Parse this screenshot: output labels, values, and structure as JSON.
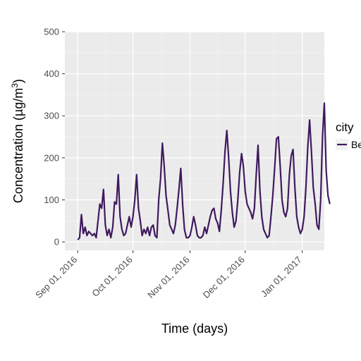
{
  "chart_data": {
    "type": "line",
    "xlabel": "Time (days)",
    "ylabel_main": "Concentration (µg/m",
    "ylabel_sup": "3",
    "ylabel_close": ")",
    "ylim": [
      -20,
      500
    ],
    "xlim": [
      "2016-08-25",
      "2017-01-13"
    ],
    "grid": true,
    "legend_position": "right",
    "legend_title": "city",
    "y_ticks": [
      0,
      100,
      200,
      300,
      400,
      500
    ],
    "x_ticks": [
      {
        "date": "2016-09-01",
        "label": "Sep 01, 2016"
      },
      {
        "date": "2016-10-01",
        "label": "Oct 01, 2016"
      },
      {
        "date": "2016-11-01",
        "label": "Nov 01, 2016"
      },
      {
        "date": "2016-12-01",
        "label": "Dec 01, 2016"
      },
      {
        "date": "2017-01-01",
        "label": "Jan 01, 2017"
      }
    ],
    "series": [
      {
        "name": "Be",
        "color": "#3f1a5e",
        "points": [
          [
            "2016-09-01",
            5
          ],
          [
            "2016-09-02",
            10
          ],
          [
            "2016-09-03",
            65
          ],
          [
            "2016-09-04",
            20
          ],
          [
            "2016-09-05",
            35
          ],
          [
            "2016-09-06",
            15
          ],
          [
            "2016-09-07",
            25
          ],
          [
            "2016-09-08",
            20
          ],
          [
            "2016-09-09",
            15
          ],
          [
            "2016-09-10",
            20
          ],
          [
            "2016-09-11",
            10
          ],
          [
            "2016-09-12",
            50
          ],
          [
            "2016-09-13",
            90
          ],
          [
            "2016-09-14",
            80
          ],
          [
            "2016-09-15",
            125
          ],
          [
            "2016-09-16",
            40
          ],
          [
            "2016-09-17",
            15
          ],
          [
            "2016-09-18",
            30
          ],
          [
            "2016-09-19",
            10
          ],
          [
            "2016-09-20",
            35
          ],
          [
            "2016-09-21",
            95
          ],
          [
            "2016-09-22",
            90
          ],
          [
            "2016-09-23",
            160
          ],
          [
            "2016-09-24",
            60
          ],
          [
            "2016-09-25",
            30
          ],
          [
            "2016-09-26",
            15
          ],
          [
            "2016-09-27",
            20
          ],
          [
            "2016-09-28",
            40
          ],
          [
            "2016-09-29",
            60
          ],
          [
            "2016-09-30",
            35
          ],
          [
            "2016-10-01",
            60
          ],
          [
            "2016-10-02",
            100
          ],
          [
            "2016-10-03",
            160
          ],
          [
            "2016-10-04",
            80
          ],
          [
            "2016-10-05",
            50
          ],
          [
            "2016-10-06",
            15
          ],
          [
            "2016-10-07",
            30
          ],
          [
            "2016-10-08",
            20
          ],
          [
            "2016-10-09",
            35
          ],
          [
            "2016-10-10",
            15
          ],
          [
            "2016-10-11",
            35
          ],
          [
            "2016-10-12",
            40
          ],
          [
            "2016-10-13",
            15
          ],
          [
            "2016-10-14",
            10
          ],
          [
            "2016-10-15",
            100
          ],
          [
            "2016-10-16",
            150
          ],
          [
            "2016-10-17",
            235
          ],
          [
            "2016-10-18",
            180
          ],
          [
            "2016-10-19",
            110
          ],
          [
            "2016-10-20",
            75
          ],
          [
            "2016-10-21",
            40
          ],
          [
            "2016-10-22",
            30
          ],
          [
            "2016-10-23",
            20
          ],
          [
            "2016-10-24",
            40
          ],
          [
            "2016-10-25",
            80
          ],
          [
            "2016-10-26",
            125
          ],
          [
            "2016-10-27",
            175
          ],
          [
            "2016-10-28",
            90
          ],
          [
            "2016-10-29",
            30
          ],
          [
            "2016-10-30",
            10
          ],
          [
            "2016-10-31",
            10
          ],
          [
            "2016-11-01",
            15
          ],
          [
            "2016-11-02",
            35
          ],
          [
            "2016-11-03",
            60
          ],
          [
            "2016-11-04",
            40
          ],
          [
            "2016-11-05",
            15
          ],
          [
            "2016-11-06",
            10
          ],
          [
            "2016-11-07",
            10
          ],
          [
            "2016-11-08",
            15
          ],
          [
            "2016-11-09",
            35
          ],
          [
            "2016-11-10",
            20
          ],
          [
            "2016-11-11",
            40
          ],
          [
            "2016-11-12",
            60
          ],
          [
            "2016-11-13",
            75
          ],
          [
            "2016-11-14",
            80
          ],
          [
            "2016-11-15",
            55
          ],
          [
            "2016-11-16",
            45
          ],
          [
            "2016-11-17",
            25
          ],
          [
            "2016-11-18",
            75
          ],
          [
            "2016-11-19",
            140
          ],
          [
            "2016-11-20",
            215
          ],
          [
            "2016-11-21",
            265
          ],
          [
            "2016-11-22",
            200
          ],
          [
            "2016-11-23",
            120
          ],
          [
            "2016-11-24",
            70
          ],
          [
            "2016-11-25",
            35
          ],
          [
            "2016-11-26",
            50
          ],
          [
            "2016-11-27",
            100
          ],
          [
            "2016-11-28",
            165
          ],
          [
            "2016-11-29",
            210
          ],
          [
            "2016-11-30",
            180
          ],
          [
            "2016-12-01",
            120
          ],
          [
            "2016-12-02",
            90
          ],
          [
            "2016-12-03",
            80
          ],
          [
            "2016-12-04",
            70
          ],
          [
            "2016-12-05",
            55
          ],
          [
            "2016-12-06",
            80
          ],
          [
            "2016-12-07",
            160
          ],
          [
            "2016-12-08",
            230
          ],
          [
            "2016-12-09",
            120
          ],
          [
            "2016-12-10",
            60
          ],
          [
            "2016-12-11",
            30
          ],
          [
            "2016-12-12",
            20
          ],
          [
            "2016-12-13",
            10
          ],
          [
            "2016-12-14",
            15
          ],
          [
            "2016-12-15",
            60
          ],
          [
            "2016-12-16",
            110
          ],
          [
            "2016-12-17",
            175
          ],
          [
            "2016-12-18",
            245
          ],
          [
            "2016-12-19",
            250
          ],
          [
            "2016-12-20",
            180
          ],
          [
            "2016-12-21",
            100
          ],
          [
            "2016-12-22",
            70
          ],
          [
            "2016-12-23",
            60
          ],
          [
            "2016-12-24",
            80
          ],
          [
            "2016-12-25",
            160
          ],
          [
            "2016-12-26",
            205
          ],
          [
            "2016-12-27",
            220
          ],
          [
            "2016-12-28",
            130
          ],
          [
            "2016-12-29",
            60
          ],
          [
            "2016-12-30",
            35
          ],
          [
            "2016-12-31",
            20
          ],
          [
            "2017-01-01",
            30
          ],
          [
            "2017-01-02",
            60
          ],
          [
            "2017-01-03",
            130
          ],
          [
            "2017-01-04",
            225
          ],
          [
            "2017-01-05",
            290
          ],
          [
            "2017-01-06",
            215
          ],
          [
            "2017-01-07",
            130
          ],
          [
            "2017-01-08",
            90
          ],
          [
            "2017-01-09",
            40
          ],
          [
            "2017-01-10",
            30
          ],
          [
            "2017-01-11",
            100
          ],
          [
            "2017-01-12",
            250
          ],
          [
            "2017-01-13",
            330
          ],
          [
            "2017-01-14",
            170
          ],
          [
            "2017-01-15",
            110
          ],
          [
            "2017-01-16",
            90
          ]
        ]
      }
    ]
  }
}
